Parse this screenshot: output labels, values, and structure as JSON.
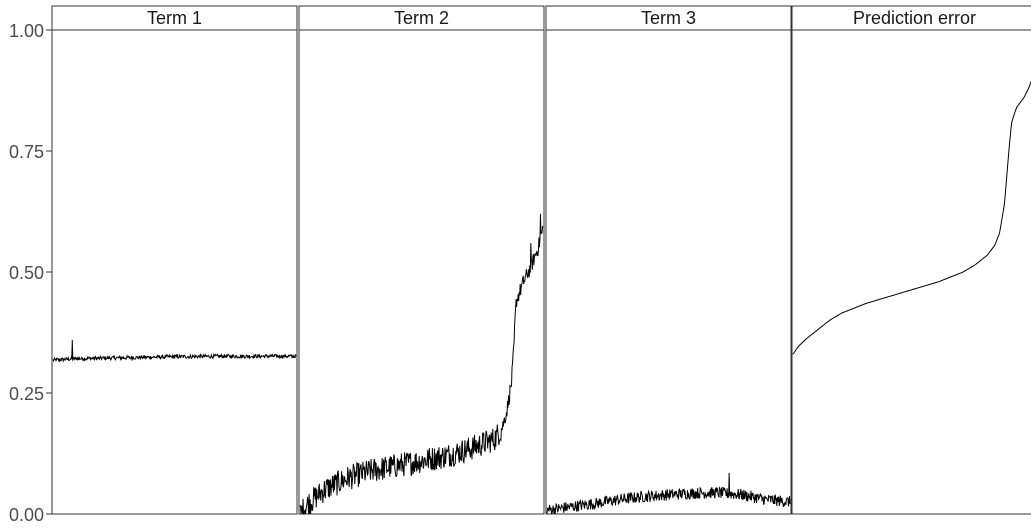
{
  "chart_data": {
    "type": "line",
    "facet_titles": [
      "Term 1",
      "Term 2",
      "Term 3",
      "Prediction error"
    ],
    "y_ticks": [
      "0.00",
      "0.25",
      "0.50",
      "0.75",
      "1.00"
    ],
    "y_tick_values": [
      0,
      0.25,
      0.5,
      0.75,
      1.0
    ],
    "ylim": [
      0,
      1.0
    ],
    "xlabel": "",
    "ylabel": "",
    "grid": false,
    "legend": "none",
    "panels": [
      {
        "title": "Term 1",
        "noise": 0.004,
        "trend": [
          [
            0,
            0.318
          ],
          [
            0.1,
            0.321
          ],
          [
            0.3,
            0.323
          ],
          [
            0.5,
            0.325
          ],
          [
            0.7,
            0.326
          ],
          [
            1.0,
            0.326
          ]
        ],
        "spikes": [
          [
            0.08,
            0.36
          ]
        ]
      },
      {
        "title": "Term 2",
        "noise": 0.026,
        "noise_until": 0.83,
        "trend": [
          [
            0,
            0.0
          ],
          [
            0.03,
            0.02
          ],
          [
            0.1,
            0.05
          ],
          [
            0.2,
            0.075
          ],
          [
            0.3,
            0.09
          ],
          [
            0.4,
            0.1
          ],
          [
            0.5,
            0.11
          ],
          [
            0.6,
            0.12
          ],
          [
            0.7,
            0.135
          ],
          [
            0.8,
            0.155
          ],
          [
            0.83,
            0.175
          ],
          [
            0.85,
            0.21
          ],
          [
            0.87,
            0.27
          ],
          [
            0.88,
            0.34
          ],
          [
            0.885,
            0.4
          ],
          [
            0.89,
            0.44
          ],
          [
            0.92,
            0.48
          ],
          [
            0.95,
            0.51
          ],
          [
            0.98,
            0.55
          ],
          [
            1.0,
            0.59
          ]
        ],
        "spikes": [
          [
            0.85,
            0.21
          ],
          [
            0.95,
            0.56
          ],
          [
            0.99,
            0.62
          ]
        ]
      },
      {
        "title": "Term 3",
        "noise": 0.012,
        "trend": [
          [
            0,
            0.008
          ],
          [
            0.1,
            0.015
          ],
          [
            0.2,
            0.022
          ],
          [
            0.3,
            0.03
          ],
          [
            0.4,
            0.036
          ],
          [
            0.5,
            0.04
          ],
          [
            0.6,
            0.043
          ],
          [
            0.7,
            0.044
          ],
          [
            0.8,
            0.04
          ],
          [
            0.9,
            0.03
          ],
          [
            1.0,
            0.025
          ]
        ],
        "spikes": [
          [
            0.75,
            0.085
          ]
        ]
      },
      {
        "title": "Prediction error",
        "noise": 0,
        "trend": [
          [
            0,
            0.33
          ],
          [
            0.02,
            0.345
          ],
          [
            0.05,
            0.36
          ],
          [
            0.1,
            0.38
          ],
          [
            0.15,
            0.4
          ],
          [
            0.2,
            0.415
          ],
          [
            0.3,
            0.435
          ],
          [
            0.4,
            0.45
          ],
          [
            0.5,
            0.465
          ],
          [
            0.6,
            0.48
          ],
          [
            0.7,
            0.5
          ],
          [
            0.75,
            0.515
          ],
          [
            0.8,
            0.535
          ],
          [
            0.83,
            0.555
          ],
          [
            0.85,
            0.58
          ],
          [
            0.87,
            0.64
          ],
          [
            0.88,
            0.7
          ],
          [
            0.89,
            0.76
          ],
          [
            0.9,
            0.81
          ],
          [
            0.92,
            0.84
          ],
          [
            0.95,
            0.86
          ],
          [
            0.97,
            0.88
          ],
          [
            1.0,
            0.92
          ]
        ],
        "spikes": []
      }
    ]
  }
}
